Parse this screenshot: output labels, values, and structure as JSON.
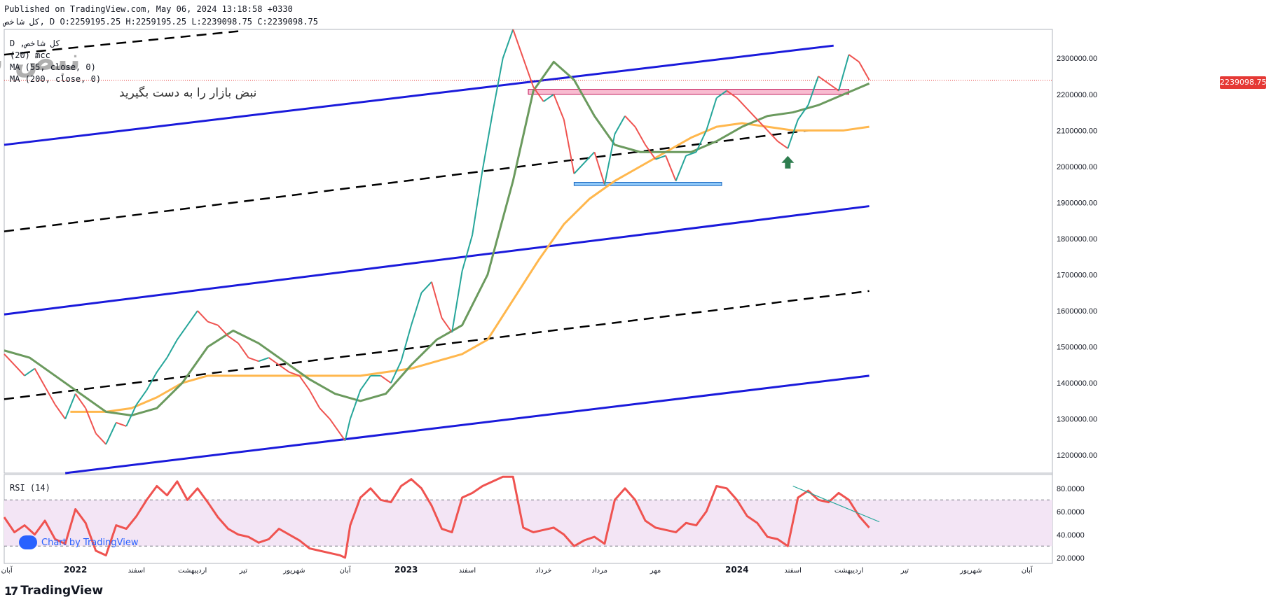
{
  "header": {
    "published": "Published on TradingView.com, May 06, 2024 13:18:58 +0330",
    "symbol_line": "کل شاخص, D O:2259195.25 H:2259195.25 L:2239098.75 C:2239098.75"
  },
  "legend": {
    "line1": "D ,کل شاخص",
    "line2": "(20) mcc",
    "line3": "MA (55, close, 0)",
    "line4": "MA (200, close, 0)"
  },
  "watermark": {
    "tagline": "نبض بازار را به دست بگیرید",
    "logo_text": "نبض بازار"
  },
  "current_price_label": "2239098.75",
  "rsi": {
    "title": "RSI (14)"
  },
  "footer": {
    "credit": "Chart by TradingView",
    "brand": "TradingView",
    "brand_mark": "17"
  },
  "colors": {
    "candle_up": "#26a69a",
    "candle_down": "#ef5350",
    "ma55": "#6b9a5e",
    "ma200": "#ffb74d",
    "channel": "#1a1adb",
    "midline": "#000000",
    "rsi_line": "#ef5350",
    "rsi_band": "#f3e5f5",
    "resistance_zone": "#f8bbd0",
    "support_zone": "#90caf9",
    "arrow": "#2e7d4f"
  },
  "chart_data": {
    "type": "line",
    "price_axis": {
      "ticks": [
        "2300000.00",
        "2200000.00",
        "2100000.00",
        "2000000.00",
        "1900000.00",
        "1800000.00",
        "1700000.00",
        "1600000.00",
        "1500000.00",
        "1400000.00",
        "1300000.00",
        "1200000.00"
      ],
      "ylim": [
        1150000,
        2380000
      ]
    },
    "rsi_axis": {
      "ticks": [
        "80.0000",
        "60.0000",
        "40.0000",
        "20.0000"
      ],
      "ylim": [
        15,
        92
      ],
      "bands": [
        30,
        70
      ]
    },
    "x_axis_labels": [
      {
        "label": "آبان",
        "t": 0.5
      },
      {
        "label": "2022",
        "t": 14
      },
      {
        "label": "اسفند",
        "t": 26
      },
      {
        "label": "اردیبهشت",
        "t": 37
      },
      {
        "label": "تیر",
        "t": 47
      },
      {
        "label": "شهریور",
        "t": 57
      },
      {
        "label": "آبان",
        "t": 67
      },
      {
        "label": "2023",
        "t": 79
      },
      {
        "label": "اسفند",
        "t": 91
      },
      {
        "label": "خرداد",
        "t": 106
      },
      {
        "label": "مرداد",
        "t": 117
      },
      {
        "label": "مهر",
        "t": 128
      },
      {
        "label": "2024",
        "t": 144
      },
      {
        "label": "اسفند",
        "t": 155
      },
      {
        "label": "اردیبهشت",
        "t": 166
      },
      {
        "label": "تیر",
        "t": 177
      },
      {
        "label": "شهریور",
        "t": 190
      },
      {
        "label": "آبان",
        "t": 201
      }
    ],
    "t_range": [
      0,
      206
    ],
    "close": [
      [
        0,
        1480000
      ],
      [
        2,
        1450000
      ],
      [
        4,
        1420000
      ],
      [
        6,
        1440000
      ],
      [
        8,
        1390000
      ],
      [
        10,
        1340000
      ],
      [
        12,
        1300000
      ],
      [
        14,
        1370000
      ],
      [
        16,
        1330000
      ],
      [
        18,
        1260000
      ],
      [
        20,
        1230000
      ],
      [
        22,
        1290000
      ],
      [
        24,
        1280000
      ],
      [
        26,
        1340000
      ],
      [
        28,
        1380000
      ],
      [
        30,
        1430000
      ],
      [
        32,
        1470000
      ],
      [
        34,
        1520000
      ],
      [
        36,
        1560000
      ],
      [
        38,
        1600000
      ],
      [
        40,
        1570000
      ],
      [
        42,
        1560000
      ],
      [
        44,
        1530000
      ],
      [
        46,
        1510000
      ],
      [
        48,
        1470000
      ],
      [
        50,
        1460000
      ],
      [
        52,
        1470000
      ],
      [
        54,
        1450000
      ],
      [
        56,
        1430000
      ],
      [
        58,
        1420000
      ],
      [
        60,
        1380000
      ],
      [
        62,
        1330000
      ],
      [
        64,
        1300000
      ],
      [
        66,
        1260000
      ],
      [
        67,
        1240000
      ],
      [
        68,
        1300000
      ],
      [
        70,
        1380000
      ],
      [
        72,
        1420000
      ],
      [
        74,
        1420000
      ],
      [
        76,
        1400000
      ],
      [
        78,
        1460000
      ],
      [
        80,
        1560000
      ],
      [
        82,
        1650000
      ],
      [
        84,
        1680000
      ],
      [
        86,
        1580000
      ],
      [
        88,
        1540000
      ],
      [
        90,
        1710000
      ],
      [
        92,
        1810000
      ],
      [
        94,
        1990000
      ],
      [
        96,
        2150000
      ],
      [
        98,
        2300000
      ],
      [
        100,
        2380000
      ],
      [
        102,
        2300000
      ],
      [
        104,
        2220000
      ],
      [
        106,
        2180000
      ],
      [
        108,
        2200000
      ],
      [
        110,
        2130000
      ],
      [
        112,
        1980000
      ],
      [
        114,
        2010000
      ],
      [
        116,
        2040000
      ],
      [
        118,
        1950000
      ],
      [
        120,
        2090000
      ],
      [
        122,
        2140000
      ],
      [
        124,
        2110000
      ],
      [
        126,
        2060000
      ],
      [
        128,
        2020000
      ],
      [
        130,
        2030000
      ],
      [
        132,
        1960000
      ],
      [
        134,
        2030000
      ],
      [
        136,
        2040000
      ],
      [
        138,
        2100000
      ],
      [
        140,
        2190000
      ],
      [
        142,
        2210000
      ],
      [
        144,
        2190000
      ],
      [
        146,
        2160000
      ],
      [
        148,
        2130000
      ],
      [
        150,
        2100000
      ],
      [
        152,
        2070000
      ],
      [
        154,
        2050000
      ],
      [
        156,
        2130000
      ],
      [
        158,
        2170000
      ],
      [
        160,
        2250000
      ],
      [
        162,
        2230000
      ],
      [
        164,
        2210000
      ],
      [
        166,
        2310000
      ],
      [
        168,
        2290000
      ],
      [
        170,
        2240000
      ]
    ],
    "ma55": [
      [
        0,
        1490000
      ],
      [
        5,
        1470000
      ],
      [
        10,
        1420000
      ],
      [
        15,
        1370000
      ],
      [
        20,
        1320000
      ],
      [
        25,
        1310000
      ],
      [
        30,
        1330000
      ],
      [
        35,
        1400000
      ],
      [
        40,
        1500000
      ],
      [
        45,
        1545000
      ],
      [
        50,
        1510000
      ],
      [
        55,
        1460000
      ],
      [
        60,
        1410000
      ],
      [
        65,
        1370000
      ],
      [
        70,
        1350000
      ],
      [
        75,
        1370000
      ],
      [
        80,
        1450000
      ],
      [
        85,
        1520000
      ],
      [
        90,
        1560000
      ],
      [
        95,
        1700000
      ],
      [
        100,
        1960000
      ],
      [
        104,
        2210000
      ],
      [
        108,
        2290000
      ],
      [
        112,
        2240000
      ],
      [
        116,
        2140000
      ],
      [
        120,
        2060000
      ],
      [
        125,
        2040000
      ],
      [
        130,
        2040000
      ],
      [
        135,
        2040000
      ],
      [
        140,
        2070000
      ],
      [
        145,
        2110000
      ],
      [
        150,
        2140000
      ],
      [
        155,
        2150000
      ],
      [
        160,
        2170000
      ],
      [
        165,
        2200000
      ],
      [
        170,
        2230000
      ]
    ],
    "ma200": [
      [
        13,
        1320000
      ],
      [
        20,
        1320000
      ],
      [
        25,
        1330000
      ],
      [
        30,
        1360000
      ],
      [
        35,
        1400000
      ],
      [
        40,
        1420000
      ],
      [
        50,
        1420000
      ],
      [
        60,
        1420000
      ],
      [
        70,
        1420000
      ],
      [
        80,
        1440000
      ],
      [
        90,
        1480000
      ],
      [
        95,
        1520000
      ],
      [
        100,
        1630000
      ],
      [
        105,
        1740000
      ],
      [
        110,
        1840000
      ],
      [
        115,
        1910000
      ],
      [
        120,
        1960000
      ],
      [
        125,
        2000000
      ],
      [
        130,
        2040000
      ],
      [
        135,
        2080000
      ],
      [
        140,
        2110000
      ],
      [
        145,
        2120000
      ],
      [
        150,
        2110000
      ],
      [
        155,
        2100000
      ],
      [
        160,
        2100000
      ],
      [
        165,
        2100000
      ],
      [
        170,
        2110000
      ]
    ],
    "rsi14": [
      [
        0,
        55
      ],
      [
        2,
        42
      ],
      [
        4,
        48
      ],
      [
        6,
        40
      ],
      [
        8,
        52
      ],
      [
        10,
        36
      ],
      [
        12,
        32
      ],
      [
        14,
        62
      ],
      [
        16,
        50
      ],
      [
        18,
        26
      ],
      [
        20,
        22
      ],
      [
        22,
        48
      ],
      [
        24,
        45
      ],
      [
        26,
        56
      ],
      [
        28,
        70
      ],
      [
        30,
        82
      ],
      [
        32,
        74
      ],
      [
        34,
        86
      ],
      [
        36,
        70
      ],
      [
        38,
        80
      ],
      [
        40,
        68
      ],
      [
        42,
        55
      ],
      [
        44,
        45
      ],
      [
        46,
        40
      ],
      [
        48,
        38
      ],
      [
        50,
        33
      ],
      [
        52,
        36
      ],
      [
        54,
        45
      ],
      [
        56,
        40
      ],
      [
        58,
        35
      ],
      [
        60,
        28
      ],
      [
        62,
        26
      ],
      [
        64,
        24
      ],
      [
        66,
        22
      ],
      [
        67,
        20
      ],
      [
        68,
        48
      ],
      [
        70,
        72
      ],
      [
        72,
        80
      ],
      [
        74,
        70
      ],
      [
        76,
        68
      ],
      [
        78,
        82
      ],
      [
        80,
        88
      ],
      [
        82,
        80
      ],
      [
        84,
        65
      ],
      [
        86,
        45
      ],
      [
        88,
        42
      ],
      [
        90,
        72
      ],
      [
        92,
        76
      ],
      [
        94,
        82
      ],
      [
        96,
        86
      ],
      [
        98,
        90
      ],
      [
        100,
        90
      ],
      [
        102,
        46
      ],
      [
        104,
        42
      ],
      [
        106,
        44
      ],
      [
        108,
        46
      ],
      [
        110,
        40
      ],
      [
        112,
        30
      ],
      [
        114,
        35
      ],
      [
        116,
        38
      ],
      [
        118,
        32
      ],
      [
        120,
        70
      ],
      [
        122,
        80
      ],
      [
        124,
        70
      ],
      [
        126,
        52
      ],
      [
        128,
        46
      ],
      [
        130,
        44
      ],
      [
        132,
        42
      ],
      [
        134,
        50
      ],
      [
        136,
        48
      ],
      [
        138,
        60
      ],
      [
        140,
        82
      ],
      [
        142,
        80
      ],
      [
        144,
        70
      ],
      [
        146,
        56
      ],
      [
        148,
        50
      ],
      [
        150,
        38
      ],
      [
        152,
        36
      ],
      [
        154,
        30
      ],
      [
        156,
        72
      ],
      [
        158,
        78
      ],
      [
        160,
        70
      ],
      [
        162,
        68
      ],
      [
        164,
        76
      ],
      [
        166,
        70
      ],
      [
        168,
        56
      ],
      [
        170,
        46
      ]
    ],
    "lines": {
      "channel_upper": [
        [
          0,
          2060000
        ],
        [
          163,
          2335000
        ]
      ],
      "channel_middle": [
        [
          0,
          1590000
        ],
        [
          170,
          1890000
        ]
      ],
      "channel_lower": [
        [
          12,
          1150000
        ],
        [
          170,
          1420000
        ]
      ],
      "mid_dash_upper": [
        [
          0,
          1820000
        ],
        [
          158,
          2100000
        ]
      ],
      "mid_dash_lower": [
        [
          0,
          1355000
        ],
        [
          170,
          1655000
        ]
      ],
      "mid_dash_top": [
        [
          0,
          2310000
        ],
        [
          46,
          2375000
        ]
      ],
      "rsi_trend": [
        [
          155,
          82
        ],
        [
          172,
          51
        ]
      ]
    },
    "zones": {
      "resistance": {
        "t1": 103,
        "t2": 166,
        "y1": 2200000,
        "y2": 2214000
      },
      "support": {
        "t1": 112,
        "t2": 141,
        "y1": 1947000,
        "y2": 1956000
      }
    },
    "arrow": {
      "t": 154,
      "y": 2010000
    },
    "last_price": 2239098.75
  }
}
